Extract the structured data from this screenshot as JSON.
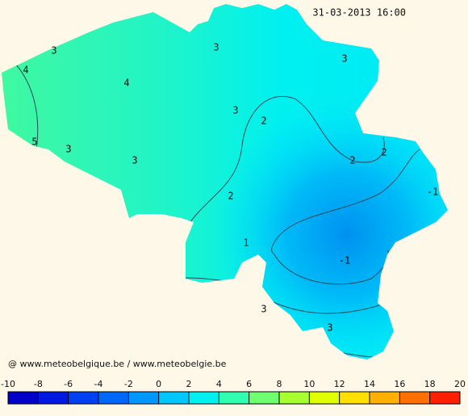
{
  "header": {
    "timestamp": "31-03-2013 16:00"
  },
  "credit": "@ www.meteobelgique.be / www.meteobelgie.be",
  "contour_labels": [
    "3",
    "4",
    "4",
    "5",
    "3",
    "3",
    "3",
    "3",
    "3",
    "2",
    "2",
    "2",
    "2",
    "-1",
    "1",
    "-1",
    "3",
    "3"
  ],
  "colorbar": {
    "ticks": [
      -10,
      -8,
      -6,
      -4,
      -2,
      0,
      2,
      4,
      6,
      8,
      10,
      12,
      14,
      16,
      18,
      20
    ],
    "colors": [
      "#0000c8",
      "#0018e0",
      "#0040f0",
      "#0068f8",
      "#0098ff",
      "#00c8ff",
      "#00f0f0",
      "#30ffb0",
      "#70ff70",
      "#a8ff30",
      "#e0ff00",
      "#ffe000",
      "#ffb000",
      "#ff7000",
      "#ff2000"
    ]
  }
}
